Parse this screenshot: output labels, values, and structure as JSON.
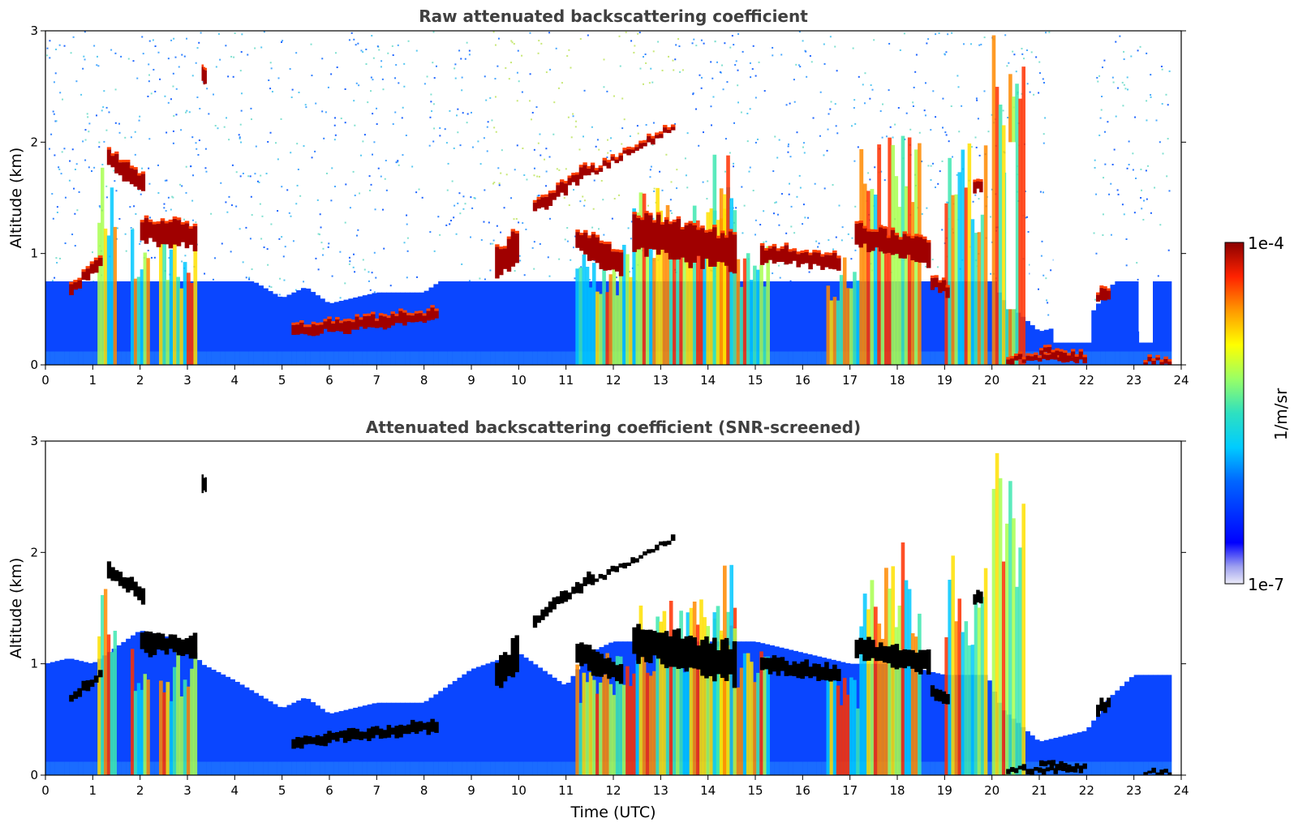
{
  "figure": {
    "colorbar": {
      "label": "1/m/sr",
      "max_label": "1e-4",
      "min_label": "1e-7",
      "range": [
        1e-07,
        0.0001
      ],
      "scale": "log",
      "colormap": "jet"
    }
  },
  "chart_data": [
    {
      "type": "heatmap",
      "title": "Raw attenuated backscattering coefficient",
      "xlabel": "",
      "ylabel": "Altitude (km)",
      "xlim": [
        0,
        24
      ],
      "ylim": [
        0,
        3
      ],
      "xticks": [
        "0",
        "1",
        "2",
        "3",
        "4",
        "5",
        "6",
        "7",
        "8",
        "9",
        "10",
        "11",
        "12",
        "13",
        "14",
        "15",
        "16",
        "17",
        "18",
        "19",
        "20",
        "21",
        "22",
        "23",
        "24"
      ],
      "yticks": [
        "0",
        "1",
        "2",
        "3"
      ],
      "screened": false,
      "cloud_layers": [
        {
          "t_start": 0.5,
          "t_end": 1.2,
          "alt_start": 0.68,
          "alt_end": 0.95,
          "thickness": 0.1
        },
        {
          "t_start": 1.3,
          "t_end": 2.1,
          "alt_start": 1.85,
          "alt_end": 1.6,
          "thickness": 0.15
        },
        {
          "t_start": 2.0,
          "t_end": 3.2,
          "alt_start": 1.2,
          "alt_end": 1.15,
          "thickness": 0.2
        },
        {
          "t_start": 3.3,
          "t_end": 3.4,
          "alt_start": 2.6,
          "alt_end": 2.6,
          "thickness": 0.15
        },
        {
          "t_start": 5.2,
          "t_end": 8.3,
          "alt_start": 0.3,
          "alt_end": 0.45,
          "thickness": 0.1
        },
        {
          "t_start": 9.5,
          "t_end": 10.0,
          "alt_start": 0.9,
          "alt_end": 1.1,
          "thickness": 0.3
        },
        {
          "t_start": 10.3,
          "t_end": 11.6,
          "alt_start": 1.4,
          "alt_end": 1.8,
          "thickness": 0.1
        },
        {
          "t_start": 11.6,
          "t_end": 13.3,
          "alt_start": 1.75,
          "alt_end": 2.15,
          "thickness": 0.05
        },
        {
          "t_start": 11.2,
          "t_end": 12.2,
          "alt_start": 1.1,
          "alt_end": 0.9,
          "thickness": 0.2
        },
        {
          "t_start": 12.4,
          "t_end": 14.6,
          "alt_start": 1.2,
          "alt_end": 1.0,
          "thickness": 0.35
        },
        {
          "t_start": 15.1,
          "t_end": 16.8,
          "alt_start": 1.0,
          "alt_end": 0.9,
          "thickness": 0.15
        },
        {
          "t_start": 17.1,
          "t_end": 18.7,
          "alt_start": 1.15,
          "alt_end": 1.0,
          "thickness": 0.2
        },
        {
          "t_start": 18.7,
          "t_end": 19.1,
          "alt_start": 0.75,
          "alt_end": 0.65,
          "thickness": 0.1
        },
        {
          "t_start": 19.6,
          "t_end": 19.8,
          "alt_start": 1.6,
          "alt_end": 1.6,
          "thickness": 0.1
        },
        {
          "t_start": 22.2,
          "t_end": 22.5,
          "alt_start": 0.6,
          "alt_end": 0.65,
          "thickness": 0.1
        },
        {
          "t_start": 20.3,
          "t_end": 21.8,
          "alt_start": 0.05,
          "alt_end": 0.05,
          "thickness": 0.05
        },
        {
          "t_start": 21.0,
          "t_end": 22.0,
          "alt_start": 0.12,
          "alt_end": 0.05,
          "thickness": 0.06
        },
        {
          "t_start": 23.2,
          "t_end": 23.8,
          "alt_start": 0.03,
          "alt_end": 0.03,
          "thickness": 0.04
        }
      ],
      "precipitation_columns": [
        {
          "t_start": 1.1,
          "t_end": 1.5,
          "top_alt": 1.8
        },
        {
          "t_start": 1.8,
          "t_end": 2.2,
          "top_alt": 1.3
        },
        {
          "t_start": 2.4,
          "t_end": 3.2,
          "top_alt": 1.2
        },
        {
          "t_start": 11.2,
          "t_end": 12.4,
          "top_alt": 1.1
        },
        {
          "t_start": 12.4,
          "t_end": 14.6,
          "top_alt": 1.6
        },
        {
          "t_start": 14.1,
          "t_end": 14.6,
          "top_alt": 2.0
        },
        {
          "t_start": 14.6,
          "t_end": 15.3,
          "top_alt": 1.2
        },
        {
          "t_start": 16.5,
          "t_end": 17.2,
          "top_alt": 1.0
        },
        {
          "t_start": 17.2,
          "t_end": 17.8,
          "top_alt": 2.0
        },
        {
          "t_start": 17.8,
          "t_end": 18.5,
          "top_alt": 2.1
        },
        {
          "t_start": 19.0,
          "t_end": 19.9,
          "top_alt": 2.0
        },
        {
          "t_start": 20.0,
          "t_end": 20.7,
          "top_alt": 3.0
        }
      ],
      "signal_gaps": [
        {
          "t_start": 16.8,
          "t_end": 17.0,
          "alt_start": 1.5,
          "alt_end": 3.0
        },
        {
          "t_start": 20.3,
          "t_end": 20.5,
          "alt_start": 0.5,
          "alt_end": 2.0
        },
        {
          "t_start": 20.8,
          "t_end": 20.95,
          "alt_start": 0.5,
          "alt_end": 2.2
        },
        {
          "t_start": 21.3,
          "t_end": 22.1,
          "alt_start": 0.2,
          "alt_end": 3.0
        },
        {
          "t_start": 23.1,
          "t_end": 23.4,
          "alt_start": 0.3,
          "alt_end": 1.0
        }
      ]
    },
    {
      "type": "heatmap",
      "title": "Attenuated backscattering coefficient (SNR-screened)",
      "xlabel": "Time (UTC)",
      "ylabel": "Altitude (km)",
      "xlim": [
        0,
        24
      ],
      "ylim": [
        0,
        3
      ],
      "xticks": [
        "0",
        "1",
        "2",
        "3",
        "4",
        "5",
        "6",
        "7",
        "8",
        "9",
        "10",
        "11",
        "12",
        "13",
        "14",
        "15",
        "16",
        "17",
        "18",
        "19",
        "20",
        "21",
        "22",
        "23",
        "24"
      ],
      "yticks": [
        "0",
        "1",
        "2",
        "3"
      ],
      "screened": true,
      "boundary_layer_top": [
        [
          0.0,
          1.0
        ],
        [
          0.5,
          1.05
        ],
        [
          1.0,
          1.0
        ],
        [
          2.0,
          1.3
        ],
        [
          3.0,
          1.2
        ],
        [
          3.3,
          1.0
        ],
        [
          4.0,
          0.85
        ],
        [
          5.0,
          0.6
        ],
        [
          5.5,
          0.7
        ],
        [
          6.0,
          0.55
        ],
        [
          7.0,
          0.65
        ],
        [
          8.0,
          0.65
        ],
        [
          9.0,
          0.95
        ],
        [
          10.0,
          1.1
        ],
        [
          11.0,
          0.8
        ],
        [
          11.5,
          1.1
        ],
        [
          12.0,
          1.2
        ],
        [
          13.0,
          1.2
        ],
        [
          14.0,
          1.2
        ],
        [
          15.0,
          1.2
        ],
        [
          16.0,
          1.1
        ],
        [
          17.0,
          1.0
        ],
        [
          18.0,
          1.0
        ],
        [
          19.0,
          0.9
        ],
        [
          19.9,
          0.9
        ],
        [
          20.2,
          0.6
        ],
        [
          21.0,
          0.3
        ],
        [
          22.0,
          0.4
        ],
        [
          22.5,
          0.7
        ],
        [
          23.0,
          0.9
        ],
        [
          23.8,
          0.9
        ]
      ]
    }
  ]
}
